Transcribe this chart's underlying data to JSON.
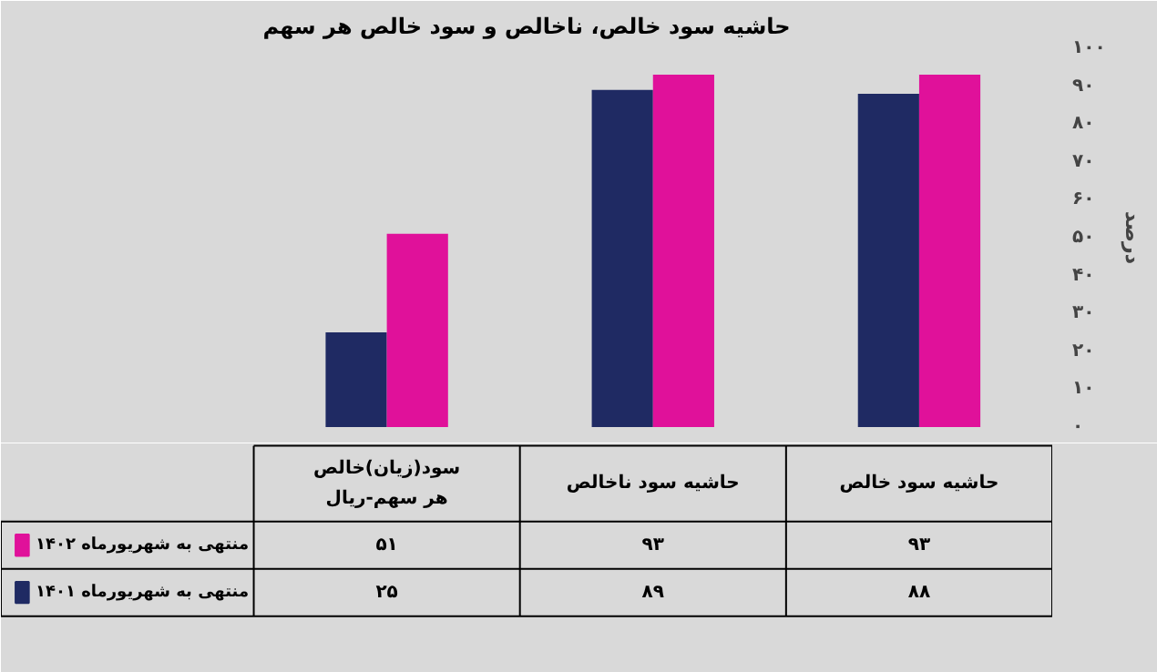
{
  "chart_data": {
    "type": "bar",
    "title": "حاشیه سود خالص، ناخالص و سود خالص هر سهم",
    "categories": [
      "سود(زیان)خالص هر سهم-ریال",
      "حاشیه سود ناخالص",
      "حاشیه سود خالص"
    ],
    "series": [
      {
        "name": "منتهی به شهریورماه ۱۴۰۱",
        "color": "#1f2a63",
        "values": [
          25,
          89,
          88
        ],
        "value_labels": [
          "۲۵",
          "۸۹",
          "۸۸"
        ]
      },
      {
        "name": "منتهی به شهریورماه ۱۴۰۲",
        "color": "#e0119a",
        "values": [
          51,
          93,
          93
        ],
        "value_labels": [
          "۵۱",
          "۹۳",
          "۹۳"
        ]
      }
    ],
    "ylabel": "درصد",
    "ylim": [
      0,
      100
    ],
    "yticks": [
      {
        "value": 0,
        "label": "۰"
      },
      {
        "value": 10,
        "label": "۱۰"
      },
      {
        "value": 20,
        "label": "۲۰"
      },
      {
        "value": 30,
        "label": "۳۰"
      },
      {
        "value": 40,
        "label": "۴۰"
      },
      {
        "value": 50,
        "label": "۵۰"
      },
      {
        "value": 60,
        "label": "۶۰"
      },
      {
        "value": 70,
        "label": "۷۰"
      },
      {
        "value": 80,
        "label": "۸۰"
      },
      {
        "value": 90,
        "label": "۹۰"
      },
      {
        "value": 100,
        "label": "۱۰۰"
      }
    ],
    "grid": false,
    "legend": "bottom left"
  }
}
